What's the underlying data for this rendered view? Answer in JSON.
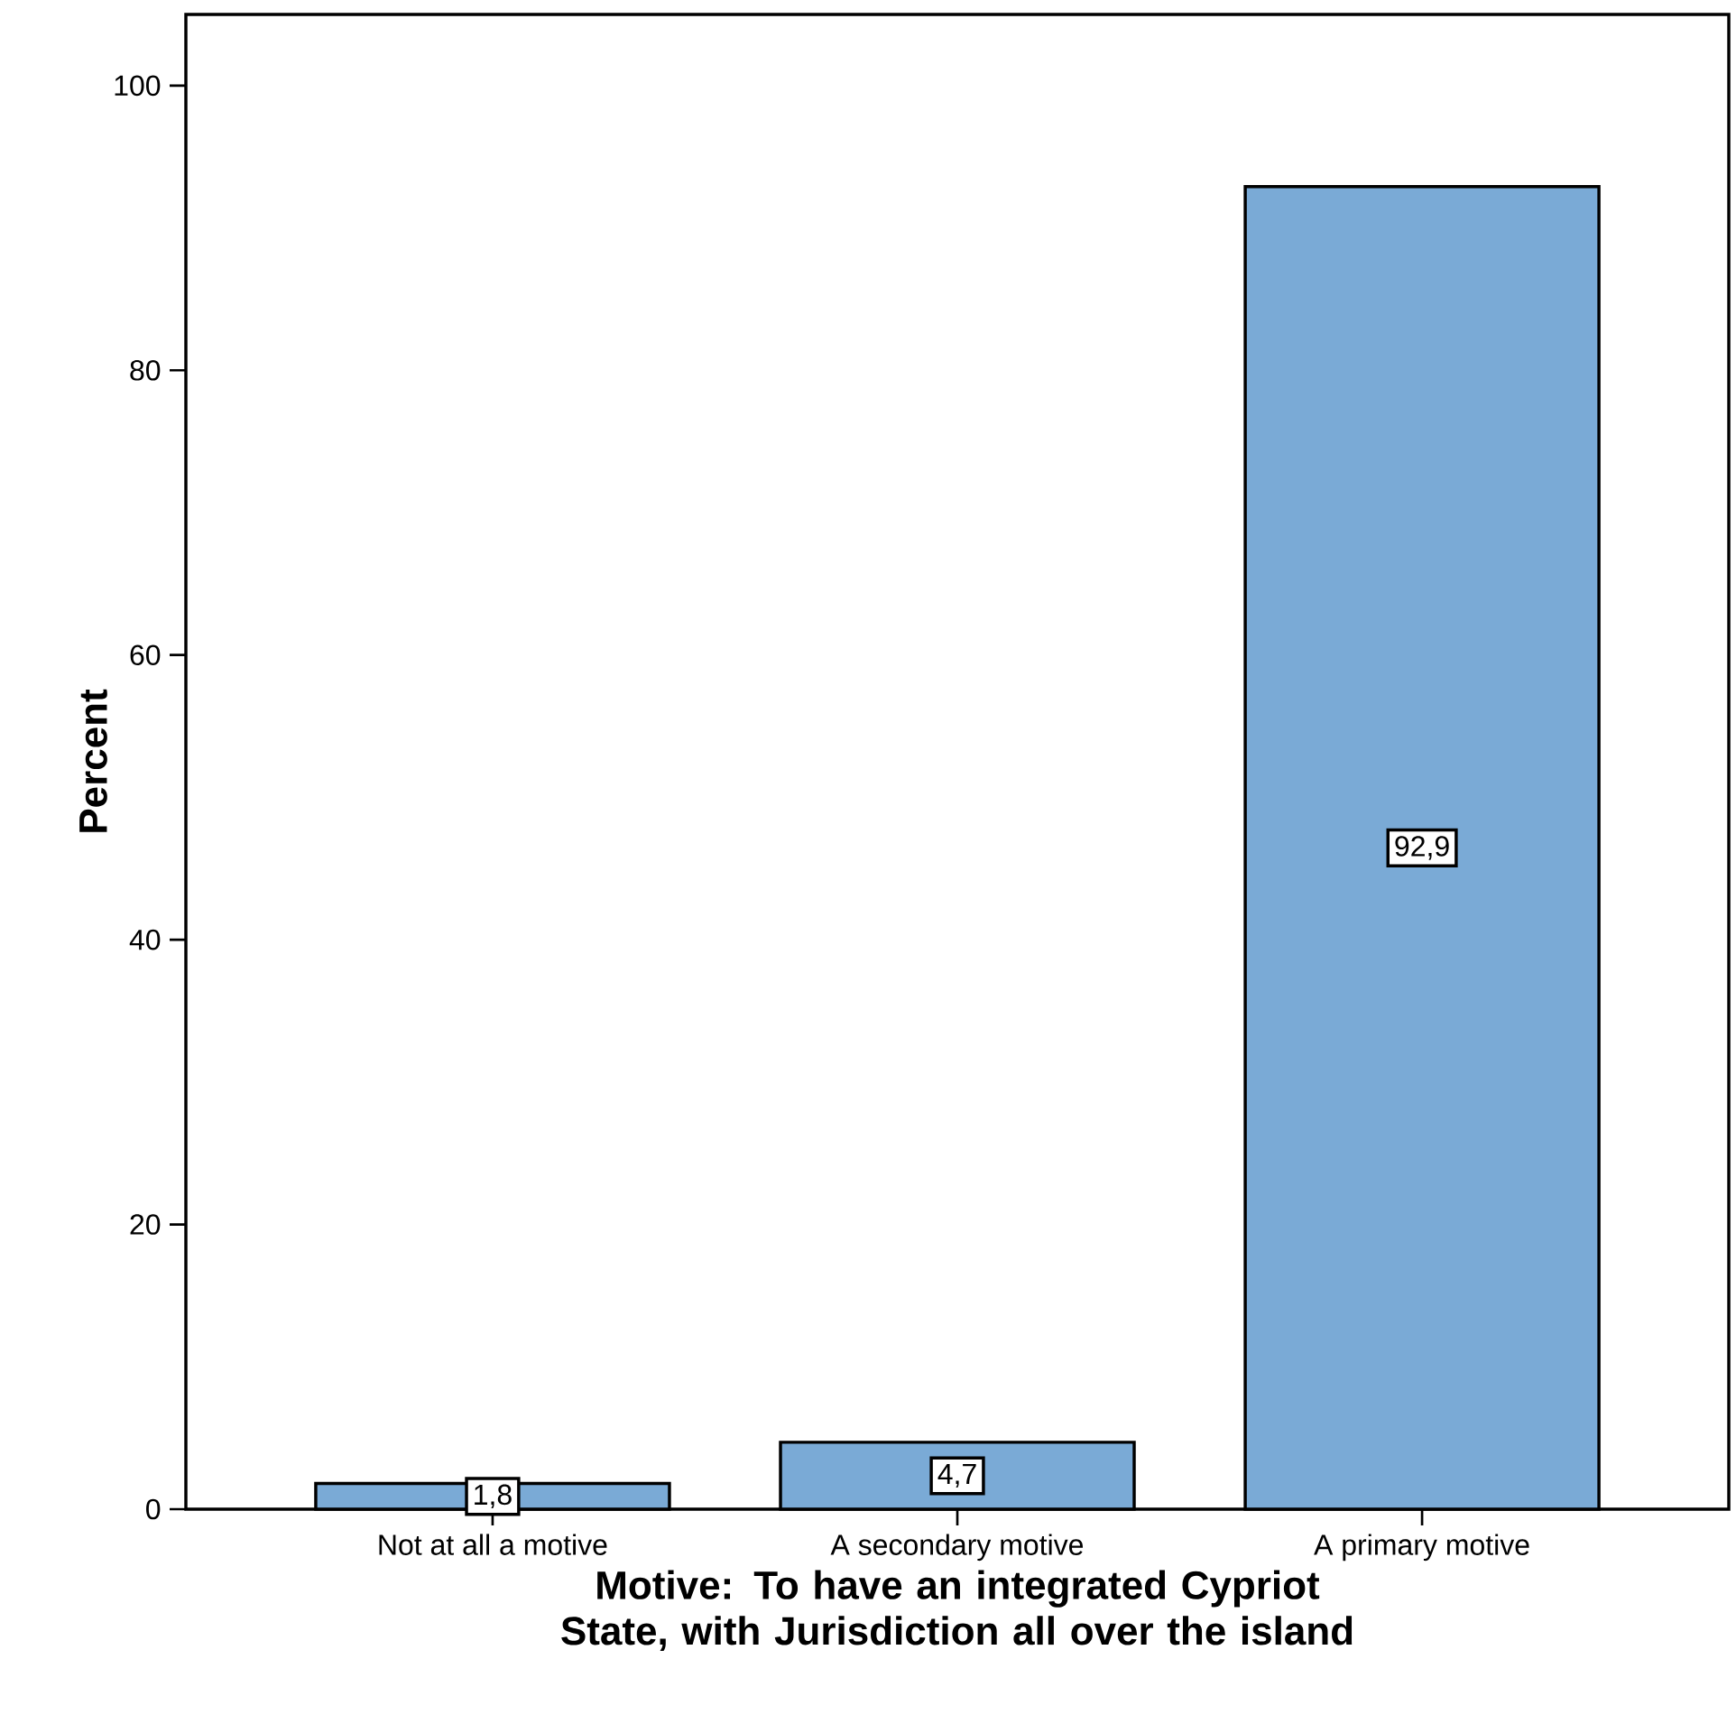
{
  "chart_data": {
    "type": "bar",
    "xlabel": "Motive: To have an integrated Cypriot State, with Jurisdiction all over the island",
    "ylabel": "Percent",
    "categories": [
      "Not at all a motive",
      "A secondary motive",
      "A primary motive"
    ],
    "values": [
      1.8,
      4.7,
      92.9
    ],
    "value_labels": [
      "1,8",
      "4,7",
      "92,9"
    ],
    "color": "#7aaad6",
    "ylim": [
      0,
      105
    ],
    "yticks": [
      0,
      20,
      40,
      60,
      80,
      100
    ],
    "grid": false
  }
}
